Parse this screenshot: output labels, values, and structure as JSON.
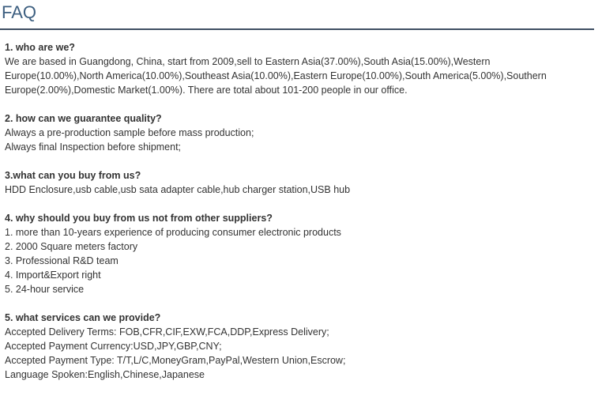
{
  "header": {
    "title": "FAQ"
  },
  "sections": [
    {
      "question": "1. who are we?",
      "lines": [
        "We are based in Guangdong, China, start from 2009,sell to Eastern Asia(37.00%),South Asia(15.00%),Western Europe(10.00%),North America(10.00%),Southeast Asia(10.00%),Eastern Europe(10.00%),South America(5.00%),Southern Europe(2.00%),Domestic Market(1.00%). There are total about 101-200 people in our office."
      ]
    },
    {
      "question": "2. how can we guarantee quality?",
      "lines": [
        "Always a pre-production sample before mass production;",
        "Always final Inspection before shipment;"
      ]
    },
    {
      "question": "3.what can you buy from us?",
      "lines": [
        "HDD Enclosure,usb cable,usb sata adapter cable,hub charger station,USB hub"
      ]
    },
    {
      "question": "4. why should you buy from us not from other suppliers?",
      "lines": [
        "1. more than 10-years experience of producing consumer electronic products",
        "2. 2000 Square meters factory",
        "3. Professional R&D team",
        "4. Import&Export right",
        "5. 24-hour service"
      ]
    },
    {
      "question": "5. what services can we provide?",
      "lines": [
        "Accepted Delivery Terms: FOB,CFR,CIF,EXW,FCA,DDP,Express Delivery;",
        "Accepted Payment Currency:USD,JPY,GBP,CNY;",
        "Accepted Payment Type: T/T,L/C,MoneyGram,PayPal,Western Union,Escrow;",
        "Language Spoken:English,Chinese,Japanese"
      ]
    }
  ]
}
